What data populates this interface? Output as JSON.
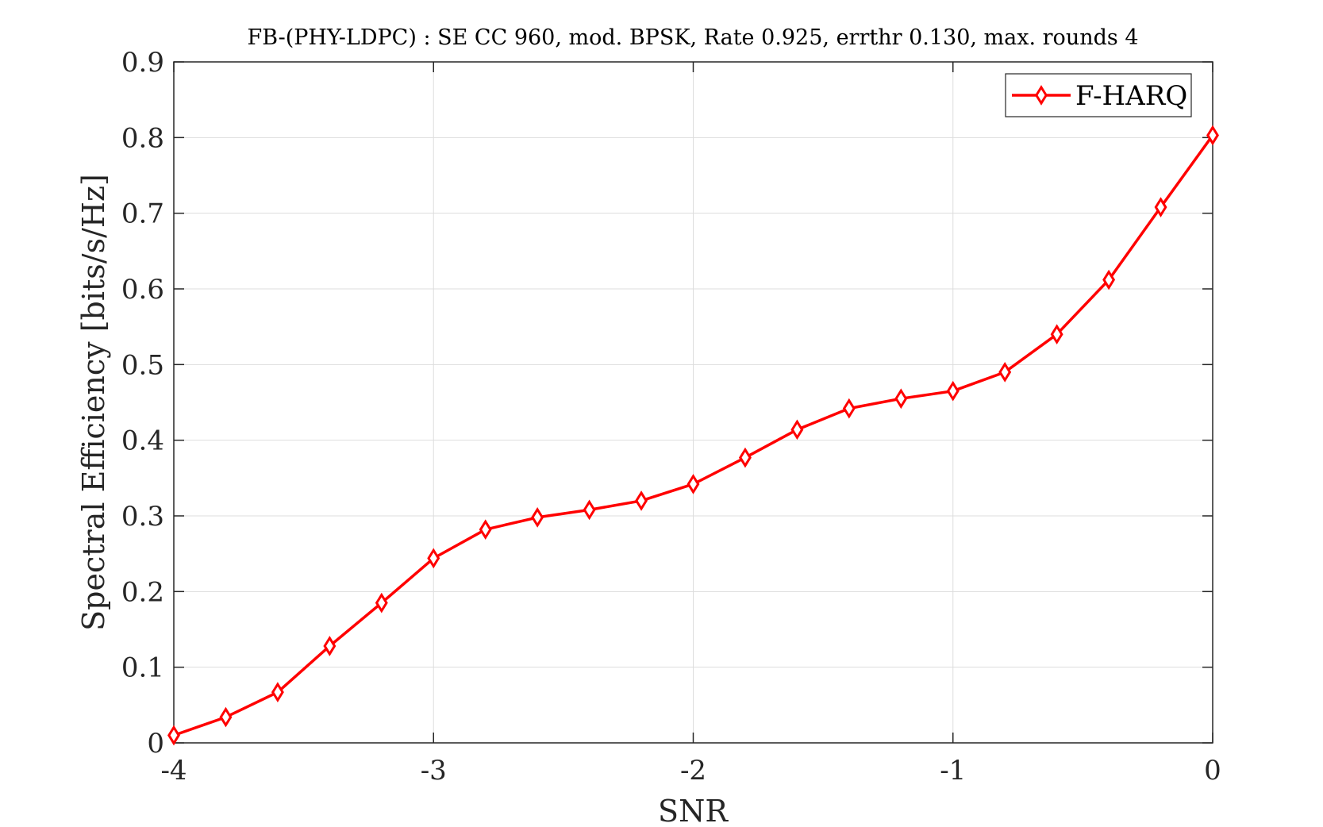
{
  "chart_data": {
    "type": "line",
    "title": "FB-(PHY-LDPC) : SE CC 960, mod. BPSK, Rate 0.925, errthr 0.130, max. rounds 4",
    "xlabel": "SNR",
    "ylabel": "Spectral Efficiency [bits/s/Hz]",
    "xlim": [
      -4,
      0
    ],
    "ylim": [
      0,
      0.9
    ],
    "xticks": [
      -4,
      -3,
      -2,
      -1,
      0
    ],
    "xtick_labels": [
      "-4",
      "-3",
      "-2",
      "-1",
      "0"
    ],
    "yticks": [
      0,
      0.1,
      0.2,
      0.3,
      0.4,
      0.5,
      0.6,
      0.7,
      0.8,
      0.9
    ],
    "ytick_labels": [
      "0",
      "0.1",
      "0.2",
      "0.3",
      "0.4",
      "0.5",
      "0.6",
      "0.7",
      "0.8",
      "0.9"
    ],
    "grid": true,
    "legend_position": "top-right",
    "series": [
      {
        "name": "F-HARQ",
        "color": "#ff0000",
        "marker": "diamond",
        "x": [
          -4,
          -3.8,
          -3.6,
          -3.4,
          -3.2,
          -3,
          -2.8,
          -2.6,
          -2.4,
          -2.2,
          -2,
          -1.8,
          -1.6,
          -1.4,
          -1.2,
          -1,
          -0.8,
          -0.6,
          -0.4,
          -0.2,
          0
        ],
        "y": [
          0.01,
          0.034,
          0.067,
          0.128,
          0.185,
          0.244,
          0.282,
          0.298,
          0.308,
          0.32,
          0.342,
          0.377,
          0.414,
          0.442,
          0.455,
          0.465,
          0.49,
          0.54,
          0.612,
          0.708,
          0.803
        ]
      }
    ]
  }
}
